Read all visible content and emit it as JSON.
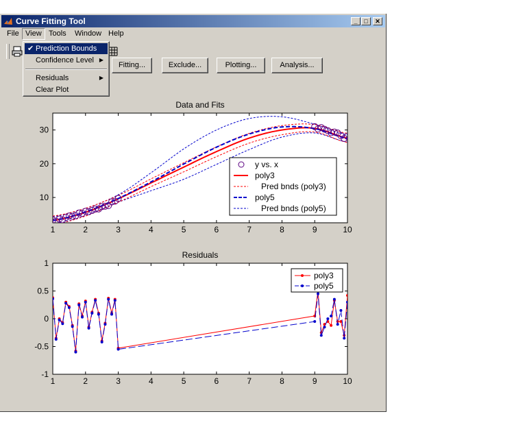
{
  "window": {
    "title": "Curve Fitting Tool"
  },
  "menubar": [
    "File",
    "View",
    "Tools",
    "Window",
    "Help"
  ],
  "view_menu": {
    "items": [
      {
        "label": "Prediction Bounds",
        "checked": true,
        "submenu": false
      },
      {
        "label": "Confidence Level",
        "checked": false,
        "submenu": true
      },
      {
        "label": "Residuals",
        "checked": false,
        "submenu": true
      },
      {
        "label": "Clear Plot",
        "checked": false,
        "submenu": false
      }
    ]
  },
  "buttons": [
    "Fitting...",
    "Exclude...",
    "Plotting...",
    "Analysis..."
  ],
  "colors": {
    "poly3": "#ff0000",
    "poly5": "#0000cc",
    "data": "#5a0080",
    "titlebar": "#0a246a"
  },
  "chart_data": [
    {
      "type": "line",
      "title": "Data and Fits",
      "xlim": [
        1,
        10
      ],
      "ylim": [
        2.5,
        35
      ],
      "xticks": [
        1,
        2,
        3,
        4,
        5,
        6,
        7,
        8,
        9,
        10
      ],
      "yticks": [
        10,
        20,
        30
      ],
      "legend": {
        "placement": "bottom-right",
        "entries": [
          "y vs. x",
          "poly3",
          "Pred bnds (poly3)",
          "poly5",
          "Pred bnds (poly5)"
        ]
      },
      "data_x": [
        1.0,
        1.1,
        1.2,
        1.3,
        1.4,
        1.5,
        1.6,
        1.7,
        1.8,
        1.9,
        2.0,
        2.1,
        2.2,
        2.3,
        2.4,
        2.5,
        2.6,
        2.7,
        2.8,
        2.9,
        3.0,
        9.0,
        9.1,
        9.2,
        9.3,
        9.4,
        9.5,
        9.6,
        9.7,
        9.8,
        9.9,
        10.0
      ],
      "data_y": [
        3.3,
        3.0,
        3.6,
        3.4,
        4.1,
        4.5,
        4.4,
        4.6,
        5.4,
        5.3,
        5.9,
        5.8,
        6.2,
        6.6,
        6.6,
        7.3,
        7.4,
        7.6,
        8.7,
        8.9,
        9.7,
        31.0,
        30.3,
        30.7,
        30.2,
        29.8,
        29.2,
        29.4,
        29.1,
        28.3,
        27.5,
        28.1
      ],
      "poly3_x": [
        1,
        2,
        3,
        4,
        5,
        6,
        7,
        8,
        9,
        10
      ],
      "poly3_y": [
        3.2,
        5.6,
        9.6,
        14.3,
        19.0,
        23.6,
        27.6,
        30.0,
        30.5,
        27.6
      ],
      "poly5_x": [
        1,
        2,
        3,
        4,
        5,
        6,
        7,
        8,
        9,
        10
      ],
      "poly5_y": [
        3.2,
        5.7,
        9.7,
        14.6,
        19.9,
        24.9,
        28.8,
        30.9,
        30.4,
        27.5
      ],
      "poly3_bounds_x": [
        1,
        2,
        3,
        4,
        5,
        6,
        7,
        8,
        9,
        10
      ],
      "poly3_upper": [
        4.5,
        6.8,
        10.6,
        15.5,
        20.3,
        25.0,
        29.0,
        31.3,
        31.6,
        29.0
      ],
      "poly3_lower": [
        2.0,
        4.5,
        8.6,
        13.2,
        17.6,
        22.1,
        26.1,
        28.6,
        29.4,
        26.3
      ],
      "poly5_bounds_x": [
        1,
        2,
        3,
        4,
        5,
        6,
        7,
        8,
        9,
        10
      ],
      "poly5_upper": [
        4.3,
        6.8,
        10.8,
        17.3,
        24.4,
        30.0,
        33.4,
        33.9,
        31.7,
        28.6
      ],
      "poly5_lower": [
        2.1,
        4.6,
        8.6,
        12.0,
        15.4,
        19.8,
        24.2,
        27.9,
        29.1,
        26.4
      ]
    },
    {
      "type": "line",
      "title": "Residuals",
      "xlim": [
        1,
        10
      ],
      "ylim": [
        -1,
        1
      ],
      "xticks": [
        1,
        2,
        3,
        4,
        5,
        6,
        7,
        8,
        9,
        10
      ],
      "yticks": [
        1,
        0.5,
        0,
        -0.5,
        -1
      ],
      "ytick_labels": [
        "1",
        "0.5",
        "0",
        "-0.5",
        "-1"
      ],
      "legend": {
        "placement": "top-right",
        "entries": [
          "poly3",
          "poly5"
        ]
      },
      "series": [
        {
          "name": "poly3",
          "x": [
            1.0,
            1.1,
            1.2,
            1.3,
            1.4,
            1.5,
            1.6,
            1.7,
            1.8,
            1.9,
            2.0,
            2.1,
            2.2,
            2.3,
            2.4,
            2.5,
            2.6,
            2.7,
            2.8,
            2.9,
            3.0,
            9.0,
            9.1,
            9.2,
            9.3,
            9.4,
            9.5,
            9.6,
            9.7,
            9.8,
            9.9,
            10.0
          ],
          "y": [
            0.38,
            -0.35,
            0.0,
            -0.07,
            0.3,
            0.22,
            -0.12,
            -0.58,
            0.27,
            0.05,
            0.32,
            -0.15,
            0.12,
            0.35,
            0.1,
            -0.4,
            -0.08,
            0.37,
            0.1,
            0.35,
            -0.53,
            0.05,
            0.5,
            -0.25,
            -0.1,
            -0.05,
            -0.12,
            0.33,
            -0.05,
            -0.05,
            -0.3,
            0.42
          ]
        },
        {
          "name": "poly5",
          "x": [
            1.0,
            1.1,
            1.2,
            1.3,
            1.4,
            1.5,
            1.6,
            1.7,
            1.8,
            1.9,
            2.0,
            2.1,
            2.2,
            2.3,
            2.4,
            2.5,
            2.6,
            2.7,
            2.8,
            2.9,
            3.0,
            9.0,
            9.1,
            9.2,
            9.3,
            9.4,
            9.5,
            9.6,
            9.7,
            9.8,
            9.9,
            10.0
          ],
          "y": [
            0.36,
            -0.37,
            -0.02,
            -0.09,
            0.28,
            0.2,
            -0.14,
            -0.6,
            0.25,
            0.03,
            0.3,
            -0.17,
            0.1,
            0.33,
            0.08,
            -0.42,
            -0.1,
            0.35,
            0.08,
            0.33,
            -0.55,
            -0.05,
            0.45,
            -0.3,
            -0.15,
            0.0,
            0.05,
            0.35,
            -0.1,
            0.15,
            -0.35,
            0.3
          ]
        }
      ]
    }
  ]
}
